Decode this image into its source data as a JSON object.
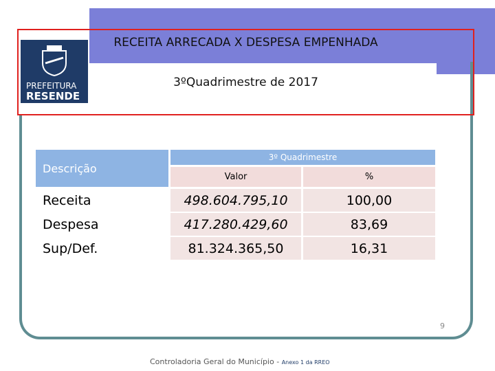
{
  "header": {
    "title": "RECEITA ARRECADA X DESPESA EMPENHADA",
    "subtitle": "3ºQuadrimestre de 2017"
  },
  "logo": {
    "line1": "PREFEITURA",
    "line2": "RESENDE"
  },
  "table": {
    "description_header": "Descrição",
    "group_header": "3º  Quadrimestre",
    "columns": [
      "Valor",
      "%"
    ],
    "rows": [
      [
        "Receita",
        "498.604.795,10",
        "100,00"
      ],
      [
        "Despesa",
        "417.280.429,60",
        "83,69"
      ],
      [
        "Sup/Def.",
        "81.324.365,50",
        "16,31"
      ]
    ]
  },
  "page_number": "9",
  "footer": {
    "text": "Controladoria Geral do Município - ",
    "annex": "Anexo 1 da RREO"
  }
}
